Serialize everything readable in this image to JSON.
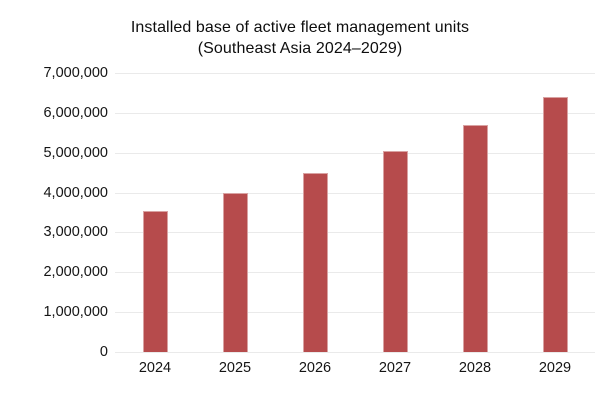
{
  "page": {
    "background": "#ffffff"
  },
  "chart_data": {
    "type": "bar",
    "title": "Installed base of active fleet management units",
    "subtitle": "(Southeast Asia 2024–2029)",
    "categories": [
      "2024",
      "2025",
      "2026",
      "2027",
      "2028",
      "2029"
    ],
    "values": [
      3550000,
      4000000,
      4500000,
      5050000,
      5700000,
      6400000
    ],
    "xlabel": "",
    "ylabel": "",
    "ylim": [
      0,
      7000000
    ],
    "ytick_interval": 1000000,
    "ytick_values": [
      0,
      1000000,
      2000000,
      3000000,
      4000000,
      5000000,
      6000000,
      7000000
    ],
    "ytick_labels": [
      "0",
      "1,000,000",
      "2,000,000",
      "3,000,000",
      "4,000,000",
      "5,000,000",
      "6,000,000",
      "7,000,000"
    ],
    "grid": "horizontal-only",
    "legend": "none",
    "colors": {
      "bar_fill": "#b64b4c",
      "bar_edge": "#d9a2a2",
      "gridline": "#eaeaea",
      "text": "#141414",
      "title_text": "#0e0e0e"
    }
  }
}
